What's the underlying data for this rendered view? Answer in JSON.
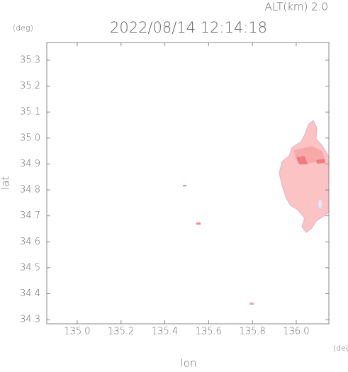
{
  "chart_data": {
    "type": "map",
    "title": "2022/08/14 12:14:18",
    "subtitle": "ALT(km) 2.0",
    "y_unit": "(deg)",
    "x_unit": "(deg)",
    "x_label": "lon",
    "y_label": "lat",
    "xlim": [
      134.861,
      136.149
    ],
    "ylim": [
      34.284,
      35.368
    ],
    "xticks": [
      {
        "value": 135.0,
        "label": "135.0"
      },
      135.2,
      135.4,
      135.6,
      135.8,
      {
        "value": 136.0,
        "label": "136.0"
      }
    ],
    "yticks": [
      34.3,
      34.4,
      34.5,
      34.6,
      34.7,
      34.8,
      34.9,
      {
        "value": 35.0,
        "label": "35.0"
      },
      35.1,
      35.2,
      35.3
    ]
  }
}
